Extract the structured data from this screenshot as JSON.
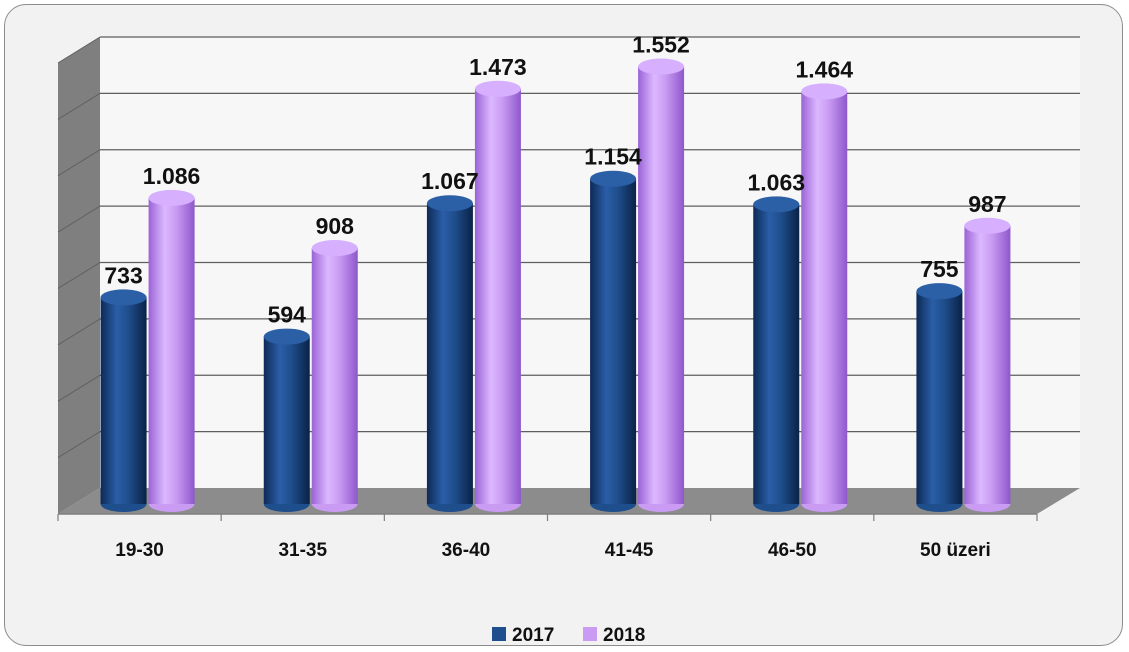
{
  "chart_data": {
    "type": "bar",
    "style": "3d-cylinder",
    "categories": [
      "19-30",
      "31-35",
      "36-40",
      "41-45",
      "46-50",
      "50 üzeri"
    ],
    "series": [
      {
        "name": "2017",
        "values": [
          733,
          594,
          1067,
          1154,
          1063,
          755
        ],
        "labels": [
          "733",
          "594",
          "1.067",
          "1.154",
          "1.063",
          "755"
        ],
        "color": "#1f4e8c"
      },
      {
        "name": "2018",
        "values": [
          1086,
          908,
          1473,
          1552,
          1464,
          987
        ],
        "labels": [
          "1.086",
          "908",
          "1.473",
          "1.552",
          "1.464",
          "987"
        ],
        "color": "#c99bf2"
      }
    ],
    "title": "",
    "xlabel": "",
    "ylabel": "",
    "ylim": [
      0,
      1600
    ],
    "grid": true,
    "legend": "bottom-center"
  }
}
